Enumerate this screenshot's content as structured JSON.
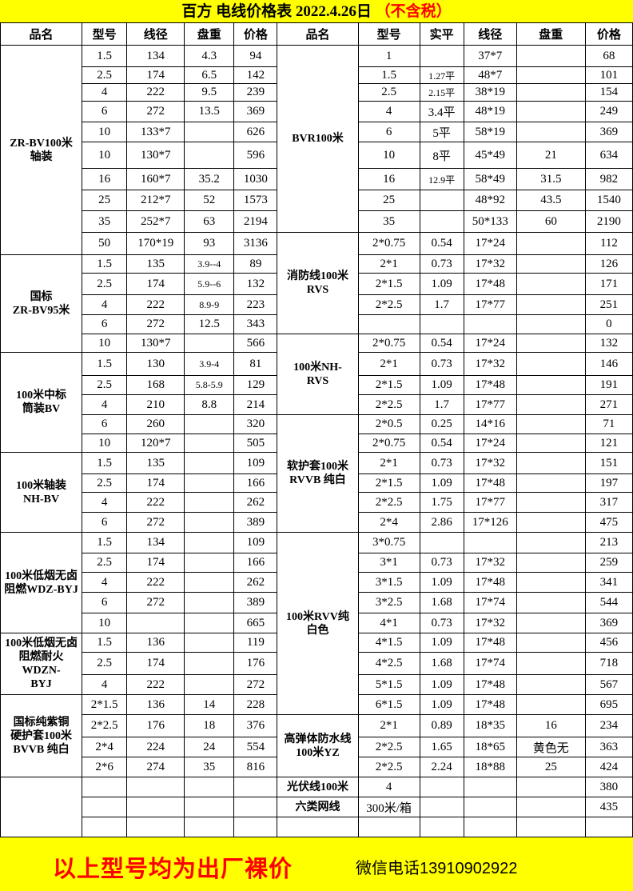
{
  "title": {
    "main": "百方 电线价格表  2022.4.26日",
    "tax_note": "（不含税）"
  },
  "headers": {
    "left": [
      "品名",
      "型号",
      "线径",
      "盘重",
      "价格"
    ],
    "right": [
      "品名",
      "型号",
      "实平",
      "线径",
      "盘重",
      "价格"
    ]
  },
  "left_groups": [
    {
      "name": "ZR-BV100米\n轴装",
      "rows": [
        [
          "1.5",
          "134",
          "4.3",
          "94"
        ],
        [
          "2.5",
          "174",
          "6.5",
          "142"
        ],
        [
          "4",
          "222",
          "9.5",
          "239"
        ],
        [
          "6",
          "272",
          "13.5",
          "369"
        ],
        [
          "10",
          "133*7",
          "",
          "626"
        ],
        [
          "10",
          "130*7",
          "",
          "596"
        ],
        [
          "16",
          "160*7",
          "35.2",
          "1030"
        ],
        [
          "25",
          "212*7",
          "52",
          "1573"
        ],
        [
          "35",
          "252*7",
          "63",
          "2194"
        ],
        [
          "50",
          "170*19",
          "93",
          "3136"
        ]
      ]
    },
    {
      "name": "国标\nZR-BV95米",
      "rows": [
        [
          "1.5",
          "135",
          "3.9--4",
          "89"
        ],
        [
          "2.5",
          "174",
          "5.9--6",
          "132"
        ],
        [
          "4",
          "222",
          "8.9-9",
          "223"
        ],
        [
          "6",
          "272",
          "12.5",
          "343"
        ],
        [
          "10",
          "130*7",
          "",
          "566"
        ]
      ]
    },
    {
      "name": "100米中标\n筒装BV",
      "rows": [
        [
          "1.5",
          "130",
          "3.9-4",
          "81"
        ],
        [
          "2.5",
          "168",
          "5.8-5.9",
          "129"
        ],
        [
          "4",
          "210",
          "8.8",
          "214"
        ],
        [
          "6",
          "260",
          "",
          "320"
        ],
        [
          "10",
          "120*7",
          "",
          "505"
        ]
      ]
    },
    {
      "name": "100米轴装\nNH-BV",
      "rows": [
        [
          "1.5",
          "135",
          "",
          "109"
        ],
        [
          "2.5",
          "174",
          "",
          "166"
        ],
        [
          "4",
          "222",
          "",
          "262"
        ],
        [
          "6",
          "272",
          "",
          "389"
        ]
      ]
    },
    {
      "name": "100米低烟无卤\n阻燃WDZ-BYJ",
      "rows": [
        [
          "1.5",
          "134",
          "",
          "109"
        ],
        [
          "2.5",
          "174",
          "",
          "166"
        ],
        [
          "4",
          "222",
          "",
          "262"
        ],
        [
          "6",
          "272",
          "",
          "389"
        ],
        [
          "10",
          "",
          "",
          "665"
        ]
      ]
    },
    {
      "name": "100米低烟无卤\n阻燃耐火WDZN-\nBYJ",
      "rows": [
        [
          "1.5",
          "136",
          "",
          "119"
        ],
        [
          "2.5",
          "174",
          "",
          "176"
        ],
        [
          "4",
          "222",
          "",
          "272"
        ]
      ]
    },
    {
      "name": "国标纯紫铜\n硬护套100米\nBVVB 纯白",
      "rows": [
        [
          "2*1.5",
          "136",
          "14",
          "228"
        ],
        [
          "2*2.5",
          "176",
          "18",
          "376"
        ],
        [
          "2*4",
          "224",
          "24",
          "554"
        ],
        [
          "2*6",
          "274",
          "35",
          "816"
        ]
      ]
    },
    {
      "name": "",
      "rows": [
        [
          "",
          "",
          "",
          ""
        ],
        [
          "",
          "",
          "",
          ""
        ],
        [
          "",
          "",
          "",
          ""
        ]
      ]
    }
  ],
  "right_groups": [
    {
      "name": "BVR100米",
      "rows": [
        [
          "1",
          "",
          "37*7",
          "",
          "68"
        ],
        [
          "1.5",
          "1.27平",
          "48*7",
          "",
          "101"
        ],
        [
          "2.5",
          "2.15平",
          "38*19",
          "",
          "154"
        ],
        [
          "4",
          "3.4平",
          "48*19",
          "",
          "249"
        ],
        [
          "6",
          "5平",
          "58*19",
          "",
          "369"
        ],
        [
          "10",
          "8平",
          "45*49",
          "21",
          "634"
        ],
        [
          "16",
          "12.9平",
          "58*49",
          "31.5",
          "982"
        ],
        [
          "25",
          "",
          "48*92",
          "43.5",
          "1540"
        ],
        [
          "35",
          "",
          "50*133",
          "60",
          "2190"
        ]
      ]
    },
    {
      "name": "消防线100米\nRVS",
      "rows": [
        [
          "2*0.75",
          "0.54",
          "17*24",
          "",
          "112"
        ],
        [
          "2*1",
          "0.73",
          "17*32",
          "",
          "126"
        ],
        [
          "2*1.5",
          "1.09",
          "17*48",
          "",
          "171"
        ],
        [
          "2*2.5",
          "1.7",
          "17*77",
          "",
          "251"
        ],
        [
          "",
          "",
          "",
          "",
          "0"
        ]
      ]
    },
    {
      "name": "100米NH-\nRVS",
      "rows": [
        [
          "2*0.75",
          "0.54",
          "17*24",
          "",
          "132"
        ],
        [
          "2*1",
          "0.73",
          "17*32",
          "",
          "146"
        ],
        [
          "2*1.5",
          "1.09",
          "17*48",
          "",
          "191"
        ],
        [
          "2*2.5",
          "1.7",
          "17*77",
          "",
          "271"
        ]
      ]
    },
    {
      "name": "软护套100米\nRVVB 纯白",
      "rows": [
        [
          "2*0.5",
          "0.25",
          "14*16",
          "",
          "71"
        ],
        [
          "2*0.75",
          "0.54",
          "17*24",
          "",
          "121"
        ],
        [
          "2*1",
          "0.73",
          "17*32",
          "",
          "151"
        ],
        [
          "2*1.5",
          "1.09",
          "17*48",
          "",
          "197"
        ],
        [
          "2*2.5",
          "1.75",
          "17*77",
          "",
          "317"
        ],
        [
          "2*4",
          "2.86",
          "17*126",
          "",
          "475"
        ]
      ]
    },
    {
      "name": "100米RVV纯\n白色",
      "rows": [
        [
          "3*0.75",
          "",
          "",
          "",
          "213"
        ],
        [
          "3*1",
          "0.73",
          "17*32",
          "",
          "259"
        ],
        [
          "3*1.5",
          "1.09",
          "17*48",
          "",
          "341"
        ],
        [
          "3*2.5",
          "1.68",
          "17*74",
          "",
          "544"
        ],
        [
          "4*1",
          "0.73",
          "17*32",
          "",
          "369"
        ],
        [
          "4*1.5",
          "1.09",
          "17*48",
          "",
          "456"
        ],
        [
          "4*2.5",
          "1.68",
          "17*74",
          "",
          "718"
        ],
        [
          "5*1.5",
          "1.09",
          "17*48",
          "",
          "567"
        ],
        [
          "6*1.5",
          "1.09",
          "17*48",
          "",
          "695"
        ]
      ]
    },
    {
      "name": "高弹体防水线\n100米YZ",
      "rows": [
        [
          "2*1",
          "0.89",
          "18*35",
          "16",
          "234"
        ],
        [
          "2*2.5",
          "1.65",
          "18*65",
          "黄色无",
          "363"
        ],
        [
          "2*2.5",
          "2.24",
          "18*88",
          "25",
          "424"
        ]
      ]
    },
    {
      "name": "光伏线100米",
      "rows": [
        [
          "4",
          "",
          "",
          "",
          "380"
        ]
      ]
    },
    {
      "name": "六类网线",
      "rows": [
        [
          "300米/箱",
          "",
          "",
          "",
          "435"
        ]
      ]
    },
    {
      "name": "",
      "rows": [
        [
          "",
          "",
          "",
          "",
          ""
        ]
      ]
    }
  ],
  "footer": {
    "notice": "以上型号均为出厂裸价",
    "contact": "微信电话13910902922"
  },
  "colors": {
    "banner": "#ffff00",
    "accent_red": "#ff0000"
  }
}
